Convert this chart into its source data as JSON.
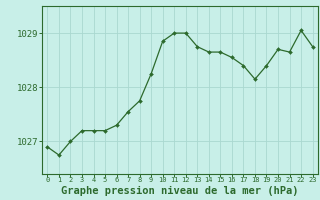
{
  "x": [
    0,
    1,
    2,
    3,
    4,
    5,
    6,
    7,
    8,
    9,
    10,
    11,
    12,
    13,
    14,
    15,
    16,
    17,
    18,
    19,
    20,
    21,
    22,
    23
  ],
  "y": [
    1026.9,
    1026.75,
    1027.0,
    1027.2,
    1027.2,
    1027.2,
    1027.3,
    1027.55,
    1027.75,
    1028.25,
    1028.85,
    1029.0,
    1029.0,
    1028.75,
    1028.65,
    1028.65,
    1028.55,
    1028.4,
    1028.15,
    1028.4,
    1028.7,
    1028.65,
    1029.05,
    1028.75
  ],
  "line_color": "#2d6a2d",
  "marker_color": "#2d6a2d",
  "bg_color": "#c8efe8",
  "grid_color": "#aad8d0",
  "border_color": "#2d6a2d",
  "xlabel": "Graphe pression niveau de la mer (hPa)",
  "xlabel_fontsize": 7.5,
  "yticks": [
    1027,
    1028,
    1029
  ],
  "ylim": [
    1026.4,
    1029.5
  ],
  "xlim": [
    -0.5,
    23.5
  ],
  "xticks": [
    0,
    1,
    2,
    3,
    4,
    5,
    6,
    7,
    8,
    9,
    10,
    11,
    12,
    13,
    14,
    15,
    16,
    17,
    18,
    19,
    20,
    21,
    22,
    23
  ],
  "ytick_fontsize": 6.5,
  "xtick_fontsize": 5.0
}
